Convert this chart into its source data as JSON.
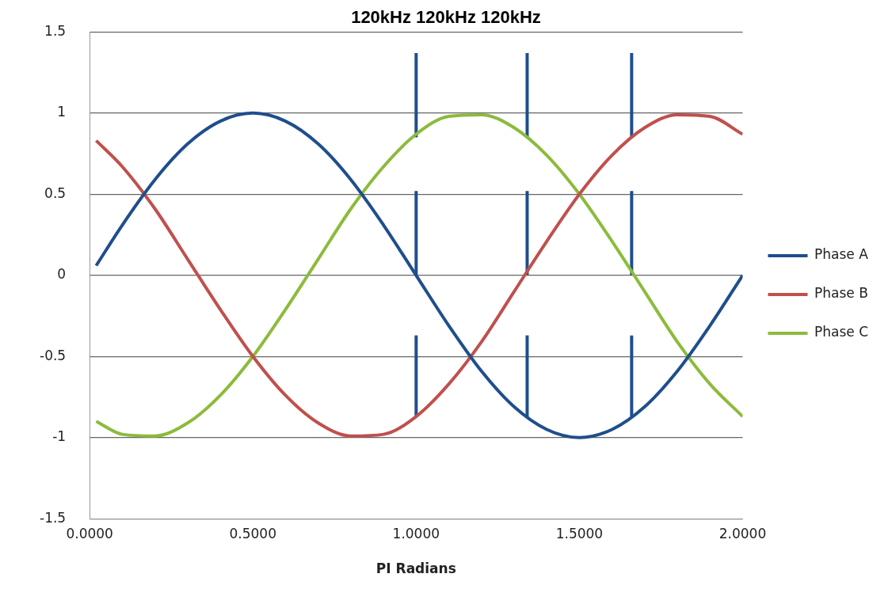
{
  "chart_data": {
    "type": "line",
    "title": "120kHz 120kHz 120kHz",
    "xlabel": "PI Radians",
    "x": [
      0.02,
      0.1,
      0.2,
      0.3,
      0.4,
      0.5,
      0.6,
      0.7,
      0.8,
      0.9,
      1.0,
      1.1,
      1.2,
      1.3,
      1.4,
      1.5,
      1.6,
      1.7,
      1.8,
      1.9,
      2.0
    ],
    "series": [
      {
        "name": "Phase A",
        "color": "#1f4e8c",
        "values": [
          0.06,
          0.31,
          0.59,
          0.81,
          0.95,
          1,
          0.95,
          0.81,
          0.59,
          0.31,
          0,
          -0.31,
          -0.59,
          -0.81,
          -0.95,
          -1,
          -0.95,
          -0.81,
          -0.59,
          -0.31,
          0
        ]
      },
      {
        "name": "Phase B",
        "color": "#c0504d",
        "values": [
          0.83,
          0.67,
          0.41,
          0.1,
          -0.21,
          -0.5,
          -0.74,
          -0.91,
          -0.99,
          -0.98,
          -0.87,
          -0.67,
          -0.41,
          -0.1,
          0.21,
          0.5,
          0.74,
          0.91,
          0.99,
          0.98,
          0.87
        ]
      },
      {
        "name": "Phase C",
        "color": "#8cbb3c",
        "values": [
          -0.9,
          -0.98,
          -0.99,
          -0.91,
          -0.74,
          -0.5,
          -0.21,
          0.1,
          0.41,
          0.67,
          0.87,
          0.98,
          0.99,
          0.91,
          0.74,
          0.5,
          0.21,
          -0.1,
          -0.41,
          -0.67,
          -0.87
        ]
      },
      {
        "type": "line",
        "color": "#1f4e8c",
        "x": [
          1,
          1
        ],
        "values": [
          0.85,
          1.37
        ]
      },
      {
        "type": "line",
        "color": "#1f4e8c",
        "x": [
          1,
          1
        ],
        "values": [
          0,
          0.52
        ]
      },
      {
        "type": "line",
        "color": "#1f4e8c",
        "x": [
          1,
          1
        ],
        "values": [
          -0.87,
          -0.37
        ]
      },
      {
        "type": "line",
        "color": "#1f4e8c",
        "x": [
          1.34,
          1.34
        ],
        "values": [
          0.85,
          1.37
        ]
      },
      {
        "type": "line",
        "color": "#1f4e8c",
        "x": [
          1.34,
          1.34
        ],
        "values": [
          0,
          0.52
        ]
      },
      {
        "type": "line",
        "color": "#1f4e8c",
        "x": [
          1.34,
          1.34
        ],
        "values": [
          -0.87,
          -0.37
        ]
      },
      {
        "type": "line",
        "color": "#1f4e8c",
        "x": [
          1.66,
          1.66
        ],
        "values": [
          0.85,
          1.37
        ]
      },
      {
        "type": "line",
        "color": "#1f4e8c",
        "x": [
          1.66,
          1.66
        ],
        "values": [
          0,
          0.52
        ]
      },
      {
        "type": "line",
        "color": "#1f4e8c",
        "x": [
          1.66,
          1.66
        ],
        "values": [
          -0.87,
          -0.37
        ]
      }
    ],
    "xlim": [
      0,
      2
    ],
    "xticks": [
      {
        "value": 0,
        "label": "0.0000"
      },
      {
        "value": 0.5,
        "label": "0.5000"
      },
      {
        "value": 1,
        "label": "1.0000"
      },
      {
        "value": 1.5,
        "label": "1.5000"
      },
      {
        "value": 2,
        "label": "2.0000"
      }
    ],
    "ylim": [
      -1.5,
      1.5
    ],
    "yticks": [
      -1.5,
      -1,
      -0.5,
      0,
      0.5,
      1,
      1.5
    ],
    "grid": "y",
    "legend": "right",
    "marker": "none",
    "line_style": "solid"
  }
}
